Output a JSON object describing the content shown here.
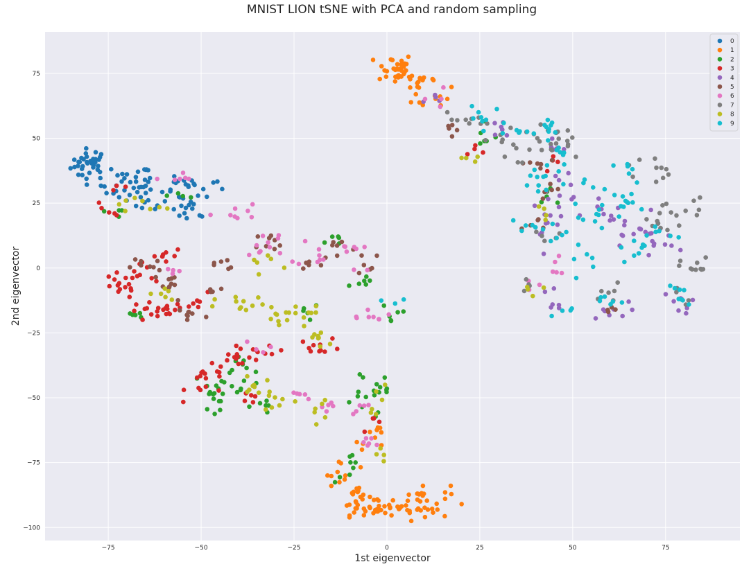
{
  "chart_data": {
    "type": "scatter",
    "title": "MNIST LION tSNE with PCA and random sampling",
    "xlabel": "1st eigenvector",
    "ylabel": "2nd eigenvector",
    "xlim": [
      -92,
      95
    ],
    "ylim": [
      -105,
      91
    ],
    "xticks": [
      -75,
      -50,
      -25,
      0,
      25,
      50,
      75
    ],
    "yticks": [
      -100,
      -75,
      -50,
      -25,
      0,
      25,
      50,
      75
    ],
    "grid": true,
    "background": "#eaeaf2",
    "legend": {
      "position": "top-right",
      "entries": [
        "0",
        "1",
        "2",
        "3",
        "4",
        "5",
        "6",
        "7",
        "8",
        "9"
      ]
    },
    "series": [
      {
        "name": "0",
        "color": "#1f77b4",
        "clusters": [
          {
            "cx": -80,
            "cy": 40,
            "sx": 2.5,
            "sy": 3,
            "n": 35
          },
          {
            "cx": -70,
            "cy": 32,
            "sx": 3.5,
            "sy": 4,
            "n": 30
          },
          {
            "cx": -64,
            "cy": 28,
            "sx": 2,
            "sy": 4,
            "n": 15
          },
          {
            "cx": -57,
            "cy": 32,
            "sx": 3,
            "sy": 2,
            "n": 10
          },
          {
            "cx": -53,
            "cy": 22,
            "sx": 2.5,
            "sy": 2.5,
            "n": 14
          },
          {
            "cx": -50,
            "cy": 31,
            "sx": 3,
            "sy": 2.5,
            "n": 10
          }
        ]
      },
      {
        "name": "1",
        "color": "#ff7f0e",
        "clusters": [
          {
            "cx": 2,
            "cy": 77,
            "sx": 2.5,
            "sy": 3,
            "n": 30
          },
          {
            "cx": 9,
            "cy": 72,
            "sx": 3,
            "sy": 2,
            "n": 14
          },
          {
            "cx": 13,
            "cy": 66,
            "sx": 3,
            "sy": 2.5,
            "n": 10
          },
          {
            "cx": -8,
            "cy": -88,
            "sx": 2,
            "sy": 3.5,
            "n": 22
          },
          {
            "cx": -2,
            "cy": -93,
            "sx": 4.5,
            "sy": 1.5,
            "n": 25
          },
          {
            "cx": 9,
            "cy": -90,
            "sx": 4,
            "sy": 3.5,
            "n": 35
          },
          {
            "cx": -12,
            "cy": -79,
            "sx": 2,
            "sy": 2.5,
            "n": 8
          },
          {
            "cx": -5,
            "cy": -70,
            "sx": 2,
            "sy": 2,
            "n": 6
          },
          {
            "cx": -3,
            "cy": -63,
            "sx": 1.5,
            "sy": 2,
            "n": 5
          }
        ]
      },
      {
        "name": "2",
        "color": "#2ca02c",
        "clusters": [
          {
            "cx": -45,
            "cy": -47,
            "sx": 3.5,
            "sy": 3.5,
            "n": 22
          },
          {
            "cx": -38,
            "cy": -40,
            "sx": 3,
            "sy": 3,
            "n": 10
          },
          {
            "cx": -33,
            "cy": -53,
            "sx": 2.5,
            "sy": 1.5,
            "n": 6
          },
          {
            "cx": -8,
            "cy": -48,
            "sx": 2.5,
            "sy": 3,
            "n": 10
          },
          {
            "cx": -1,
            "cy": -50,
            "sx": 1.5,
            "sy": 4,
            "n": 8
          },
          {
            "cx": -9,
            "cy": -77,
            "sx": 2.5,
            "sy": 3,
            "n": 8
          },
          {
            "cx": -15,
            "cy": 10,
            "sx": 2,
            "sy": 2,
            "n": 5
          },
          {
            "cx": -7,
            "cy": -5,
            "sx": 2,
            "sy": 3,
            "n": 6
          },
          {
            "cx": 2,
            "cy": -17,
            "sx": 2,
            "sy": 3,
            "n": 6
          },
          {
            "cx": -68,
            "cy": -18,
            "sx": 2,
            "sy": 1.5,
            "n": 5
          },
          {
            "cx": -72,
            "cy": 22,
            "sx": 2,
            "sy": 2,
            "n": 4
          },
          {
            "cx": -55,
            "cy": 28,
            "sx": 2,
            "sy": 1.5,
            "n": 4
          },
          {
            "cx": 27,
            "cy": 50,
            "sx": 2,
            "sy": 2,
            "n": 6
          },
          {
            "cx": 44,
            "cy": 27,
            "sx": 2,
            "sy": 3,
            "n": 5
          },
          {
            "cx": -21,
            "cy": -17,
            "sx": 2,
            "sy": 2,
            "n": 5
          }
        ]
      },
      {
        "name": "3",
        "color": "#d62728",
        "clusters": [
          {
            "cx": -72,
            "cy": -7,
            "sx": 3,
            "sy": 2.5,
            "n": 15
          },
          {
            "cx": -62,
            "cy": -17,
            "sx": 4,
            "sy": 2,
            "n": 20
          },
          {
            "cx": -65,
            "cy": -2,
            "sx": 2,
            "sy": 2,
            "n": 8
          },
          {
            "cx": -60,
            "cy": 5,
            "sx": 2.5,
            "sy": 1.5,
            "n": 8
          },
          {
            "cx": -48,
            "cy": -44,
            "sx": 3,
            "sy": 3,
            "n": 16
          },
          {
            "cx": -40,
            "cy": -35,
            "sx": 3,
            "sy": 3,
            "n": 12
          },
          {
            "cx": -32,
            "cy": -32,
            "sx": 3,
            "sy": 2,
            "n": 8
          },
          {
            "cx": -18,
            "cy": -30,
            "sx": 3,
            "sy": 1.5,
            "n": 10
          },
          {
            "cx": -38,
            "cy": -49,
            "sx": 2,
            "sy": 1.5,
            "n": 5
          },
          {
            "cx": -73,
            "cy": 26,
            "sx": 2,
            "sy": 4,
            "n": 8
          },
          {
            "cx": -50,
            "cy": -14,
            "sx": 3,
            "sy": 2,
            "n": 6
          },
          {
            "cx": 25,
            "cy": 48,
            "sx": 2,
            "sy": 2,
            "n": 4
          },
          {
            "cx": -4,
            "cy": -60,
            "sx": 1.5,
            "sy": 1.5,
            "n": 4
          },
          {
            "cx": 46,
            "cy": 40,
            "sx": 2,
            "sy": 2,
            "n": 4
          }
        ]
      },
      {
        "name": "4",
        "color": "#9467bd",
        "clusters": [
          {
            "cx": 42,
            "cy": 20,
            "sx": 3,
            "sy": 6,
            "n": 12
          },
          {
            "cx": 48,
            "cy": 32,
            "sx": 2,
            "sy": 3,
            "n": 8
          },
          {
            "cx": 60,
            "cy": 20,
            "sx": 3.5,
            "sy": 3,
            "n": 12
          },
          {
            "cx": 66,
            "cy": 12,
            "sx": 4,
            "sy": 3,
            "n": 10
          },
          {
            "cx": 74,
            "cy": 10,
            "sx": 3,
            "sy": 3,
            "n": 8
          },
          {
            "cx": 79,
            "cy": -13,
            "sx": 2.5,
            "sy": 2,
            "n": 8
          },
          {
            "cx": 59,
            "cy": -17,
            "sx": 3,
            "sy": 2,
            "n": 8
          },
          {
            "cx": 45,
            "cy": -12,
            "sx": 2.5,
            "sy": 3,
            "n": 6
          },
          {
            "cx": 44,
            "cy": 45,
            "sx": 2.5,
            "sy": 3,
            "n": 6
          },
          {
            "cx": 30,
            "cy": 52,
            "sx": 2.5,
            "sy": 2.5,
            "n": 6
          },
          {
            "cx": 14,
            "cy": 64,
            "sx": 2,
            "sy": 2,
            "n": 4
          }
        ]
      },
      {
        "name": "5",
        "color": "#8c564b",
        "clusters": [
          {
            "cx": -65,
            "cy": 1,
            "sx": 2,
            "sy": 2,
            "n": 8
          },
          {
            "cx": -58,
            "cy": -7,
            "sx": 2.5,
            "sy": 3,
            "n": 10
          },
          {
            "cx": -53,
            "cy": -18,
            "sx": 2.5,
            "sy": 2,
            "n": 8
          },
          {
            "cx": -48,
            "cy": -8,
            "sx": 2,
            "sy": 2,
            "n": 4
          },
          {
            "cx": -44,
            "cy": 1,
            "sx": 2.5,
            "sy": 1.5,
            "n": 6
          },
          {
            "cx": -30,
            "cy": 10,
            "sx": 3,
            "sy": 2,
            "n": 8
          },
          {
            "cx": -22,
            "cy": 2,
            "sx": 2,
            "sy": 1.5,
            "n": 5
          },
          {
            "cx": -13,
            "cy": 8,
            "sx": 2.5,
            "sy": 2.5,
            "n": 7
          },
          {
            "cx": -5,
            "cy": 2,
            "sx": 2,
            "sy": 3,
            "n": 6
          },
          {
            "cx": 18,
            "cy": 55,
            "sx": 2.5,
            "sy": 1.5,
            "n": 5
          },
          {
            "cx": 40,
            "cy": 40,
            "sx": 3,
            "sy": 2,
            "n": 6
          },
          {
            "cx": 45,
            "cy": 30,
            "sx": 2.5,
            "sy": 2,
            "n": 5
          },
          {
            "cx": 41,
            "cy": 15,
            "sx": 2.5,
            "sy": 2,
            "n": 5
          },
          {
            "cx": 59,
            "cy": -16,
            "sx": 2,
            "sy": 1.5,
            "n": 4
          }
        ]
      },
      {
        "name": "6",
        "color": "#e377c2",
        "clusters": [
          {
            "cx": -56,
            "cy": 34,
            "sx": 2,
            "sy": 1.5,
            "n": 6
          },
          {
            "cx": -41,
            "cy": 22,
            "sx": 3,
            "sy": 2.5,
            "n": 8
          },
          {
            "cx": -32,
            "cy": 10,
            "sx": 3,
            "sy": 3,
            "n": 10
          },
          {
            "cx": -18,
            "cy": 6,
            "sx": 3,
            "sy": 3,
            "n": 10
          },
          {
            "cx": -6,
            "cy": 5,
            "sx": 2,
            "sy": 3,
            "n": 6
          },
          {
            "cx": -5,
            "cy": -17,
            "sx": 3,
            "sy": 2,
            "n": 8
          },
          {
            "cx": -24,
            "cy": -50,
            "sx": 2,
            "sy": 1.5,
            "n": 5
          },
          {
            "cx": -17,
            "cy": -53,
            "sx": 2,
            "sy": 2,
            "n": 5
          },
          {
            "cx": -7,
            "cy": -55,
            "sx": 2,
            "sy": 2,
            "n": 5
          },
          {
            "cx": -5,
            "cy": -67,
            "sx": 2,
            "sy": 2,
            "n": 6
          },
          {
            "cx": 45,
            "cy": 0,
            "sx": 2,
            "sy": 2,
            "n": 5
          },
          {
            "cx": 38,
            "cy": -7,
            "sx": 1.5,
            "sy": 1.5,
            "n": 4
          },
          {
            "cx": 12,
            "cy": 66,
            "sx": 2,
            "sy": 2,
            "n": 4
          },
          {
            "cx": -36,
            "cy": -31,
            "sx": 2,
            "sy": 1.5,
            "n": 4
          },
          {
            "cx": -58,
            "cy": -2,
            "sx": 2,
            "sy": 1.5,
            "n": 4
          }
        ]
      },
      {
        "name": "7",
        "color": "#7f7f7f",
        "clusters": [
          {
            "cx": 20,
            "cy": 57,
            "sx": 3,
            "sy": 2,
            "n": 8
          },
          {
            "cx": 32,
            "cy": 48,
            "sx": 3,
            "sy": 4,
            "n": 12
          },
          {
            "cx": 42,
            "cy": 50,
            "sx": 3,
            "sy": 3,
            "n": 12
          },
          {
            "cx": 48,
            "cy": 48,
            "sx": 2,
            "sy": 4,
            "n": 8
          },
          {
            "cx": 70,
            "cy": 38,
            "sx": 3,
            "sy": 3,
            "n": 10
          },
          {
            "cx": 80,
            "cy": 23,
            "sx": 3,
            "sy": 3,
            "n": 10
          },
          {
            "cx": 83,
            "cy": 0,
            "sx": 2,
            "sy": 2,
            "n": 10
          },
          {
            "cx": 72,
            "cy": 18,
            "sx": 3,
            "sy": 3,
            "n": 8
          },
          {
            "cx": 60,
            "cy": -12,
            "sx": 2.5,
            "sy": 3,
            "n": 6
          },
          {
            "cx": 43,
            "cy": 12,
            "sx": 2.5,
            "sy": 2,
            "n": 5
          },
          {
            "cx": 38,
            "cy": -6,
            "sx": 2,
            "sy": 2,
            "n": 4
          },
          {
            "cx": 80,
            "cy": -11,
            "sx": 2,
            "sy": 2,
            "n": 4
          }
        ]
      },
      {
        "name": "8",
        "color": "#bcbd22",
        "clusters": [
          {
            "cx": -38,
            "cy": -15,
            "sx": 4,
            "sy": 2,
            "n": 12
          },
          {
            "cx": -28,
            "cy": -20,
            "sx": 2.5,
            "sy": 2.5,
            "n": 8
          },
          {
            "cx": -22,
            "cy": -18,
            "sx": 3,
            "sy": 2,
            "n": 8
          },
          {
            "cx": -18,
            "cy": -27,
            "sx": 2.5,
            "sy": 2,
            "n": 8
          },
          {
            "cx": -35,
            "cy": -45,
            "sx": 2.5,
            "sy": 3,
            "n": 10
          },
          {
            "cx": -27,
            "cy": -52,
            "sx": 2.5,
            "sy": 2,
            "n": 6
          },
          {
            "cx": -20,
            "cy": -55,
            "sx": 2,
            "sy": 2,
            "n": 6
          },
          {
            "cx": -33,
            "cy": 2,
            "sx": 2.5,
            "sy": 2,
            "n": 6
          },
          {
            "cx": -60,
            "cy": -10,
            "sx": 2,
            "sy": 2,
            "n": 6
          },
          {
            "cx": -70,
            "cy": 25,
            "sx": 2,
            "sy": 2,
            "n": 4
          },
          {
            "cx": -62,
            "cy": 24,
            "sx": 2,
            "sy": 1.5,
            "n": 4
          },
          {
            "cx": -2,
            "cy": -50,
            "sx": 1.5,
            "sy": 3,
            "n": 6
          },
          {
            "cx": -2,
            "cy": -72,
            "sx": 1.5,
            "sy": 1.5,
            "n": 4
          },
          {
            "cx": 23,
            "cy": 42,
            "sx": 1.5,
            "sy": 1,
            "n": 4
          },
          {
            "cx": 42,
            "cy": 22,
            "sx": 2,
            "sy": 2,
            "n": 4
          },
          {
            "cx": 39,
            "cy": -8,
            "sx": 2,
            "sy": 1.5,
            "n": 4
          }
        ]
      },
      {
        "name": "9",
        "color": "#17becf",
        "clusters": [
          {
            "cx": 25,
            "cy": 58,
            "sx": 3,
            "sy": 2,
            "n": 8
          },
          {
            "cx": 35,
            "cy": 52,
            "sx": 3,
            "sy": 2,
            "n": 8
          },
          {
            "cx": 43,
            "cy": 54,
            "sx": 2.5,
            "sy": 2,
            "n": 8
          },
          {
            "cx": 47,
            "cy": 46,
            "sx": 2,
            "sy": 3,
            "n": 6
          },
          {
            "cx": 44,
            "cy": 38,
            "sx": 2.5,
            "sy": 2.5,
            "n": 6
          },
          {
            "cx": 40,
            "cy": 32,
            "sx": 2,
            "sy": 2,
            "n": 5
          },
          {
            "cx": 38,
            "cy": 15,
            "sx": 2.5,
            "sy": 1.5,
            "n": 5
          },
          {
            "cx": 44,
            "cy": 13,
            "sx": 2.5,
            "sy": 2.5,
            "n": 6
          },
          {
            "cx": 52,
            "cy": 4,
            "sx": 2,
            "sy": 3,
            "n": 6
          },
          {
            "cx": 55,
            "cy": 20,
            "sx": 2.5,
            "sy": 3,
            "n": 8
          },
          {
            "cx": 66,
            "cy": 24,
            "sx": 4,
            "sy": 3,
            "n": 12
          },
          {
            "cx": 68,
            "cy": 8,
            "sx": 3,
            "sy": 2,
            "n": 8
          },
          {
            "cx": 79,
            "cy": -11,
            "sx": 2,
            "sy": 2,
            "n": 8
          },
          {
            "cx": 61,
            "cy": -14,
            "sx": 2.5,
            "sy": 2,
            "n": 6
          },
          {
            "cx": 50,
            "cy": -15,
            "sx": 2,
            "sy": 2,
            "n": 4
          },
          {
            "cx": 55,
            "cy": 32,
            "sx": 2,
            "sy": 2,
            "n": 5
          },
          {
            "cx": 66,
            "cy": 37,
            "sx": 2.5,
            "sy": 2,
            "n": 6
          },
          {
            "cx": 72,
            "cy": 14,
            "sx": 2.5,
            "sy": 2,
            "n": 6
          },
          {
            "cx": 2,
            "cy": -14,
            "sx": 2,
            "sy": 1.5,
            "n": 3
          }
        ]
      }
    ]
  }
}
